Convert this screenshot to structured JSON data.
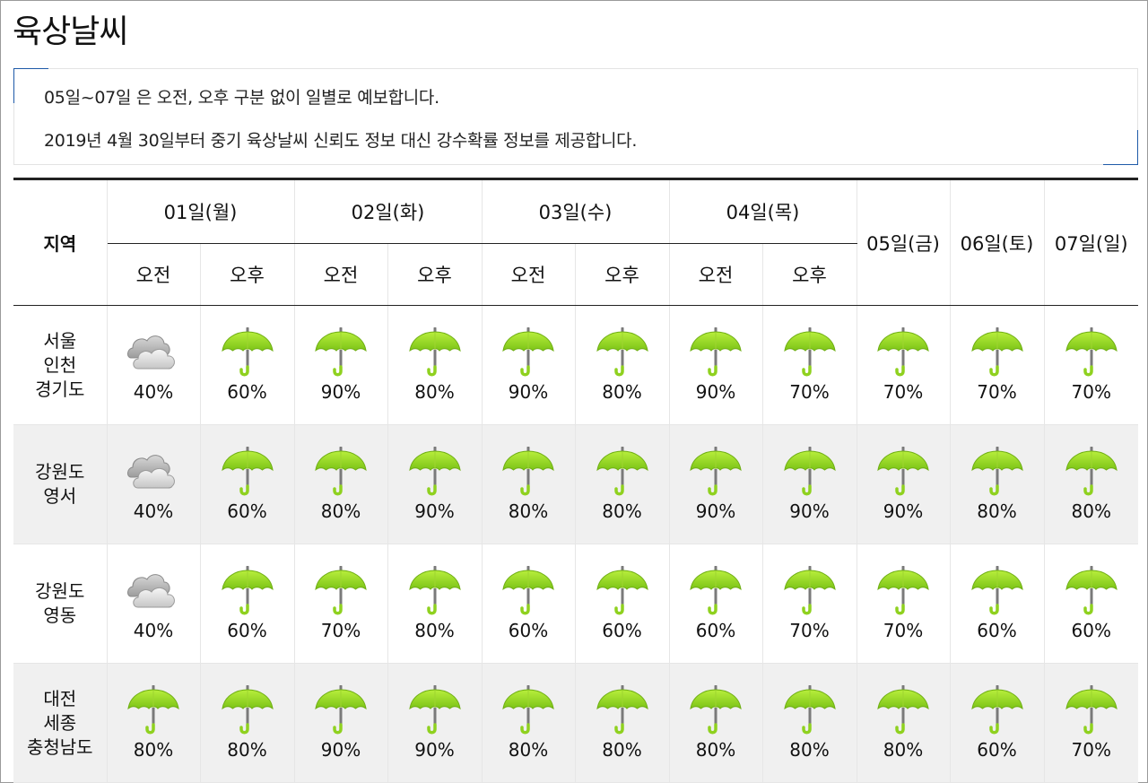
{
  "page": {
    "title": "육상날씨"
  },
  "notice": {
    "line1": "05일~07일 은 오전, 오후 구분 없이 일별로 예보합니다.",
    "line2": "2019년 4월 30일부터 중기 육상날씨 신뢰도 정보 대신 강수확률 정보를 제공합니다."
  },
  "table": {
    "region_header": "지역",
    "days": [
      {
        "label": "01일(월)",
        "split": true
      },
      {
        "label": "02일(화)",
        "split": true
      },
      {
        "label": "03일(수)",
        "split": true
      },
      {
        "label": "04일(목)",
        "split": true
      },
      {
        "label": "05일(금)",
        "split": false
      },
      {
        "label": "06일(토)",
        "split": false
      },
      {
        "label": "07일(일)",
        "split": false
      }
    ],
    "am_label": "오전",
    "pm_label": "오후",
    "rows": [
      {
        "region": [
          "서울",
          "인천",
          "경기도"
        ],
        "cells": [
          {
            "icon": "cloudy-icon",
            "pct": "40%"
          },
          {
            "icon": "umbrella-icon",
            "pct": "60%"
          },
          {
            "icon": "umbrella-icon",
            "pct": "90%"
          },
          {
            "icon": "umbrella-icon",
            "pct": "80%"
          },
          {
            "icon": "umbrella-icon",
            "pct": "90%"
          },
          {
            "icon": "umbrella-icon",
            "pct": "80%"
          },
          {
            "icon": "umbrella-icon",
            "pct": "90%"
          },
          {
            "icon": "umbrella-icon",
            "pct": "70%"
          },
          {
            "icon": "umbrella-icon",
            "pct": "70%"
          },
          {
            "icon": "umbrella-icon",
            "pct": "70%"
          },
          {
            "icon": "umbrella-icon",
            "pct": "70%"
          }
        ]
      },
      {
        "region": [
          "강원도",
          "영서"
        ],
        "cells": [
          {
            "icon": "cloudy-icon",
            "pct": "40%"
          },
          {
            "icon": "umbrella-icon",
            "pct": "60%"
          },
          {
            "icon": "umbrella-icon",
            "pct": "80%"
          },
          {
            "icon": "umbrella-icon",
            "pct": "90%"
          },
          {
            "icon": "umbrella-icon",
            "pct": "80%"
          },
          {
            "icon": "umbrella-icon",
            "pct": "80%"
          },
          {
            "icon": "umbrella-icon",
            "pct": "90%"
          },
          {
            "icon": "umbrella-icon",
            "pct": "90%"
          },
          {
            "icon": "umbrella-icon",
            "pct": "90%"
          },
          {
            "icon": "umbrella-icon",
            "pct": "80%"
          },
          {
            "icon": "umbrella-icon",
            "pct": "80%"
          }
        ]
      },
      {
        "region": [
          "강원도",
          "영동"
        ],
        "cells": [
          {
            "icon": "cloudy-icon",
            "pct": "40%"
          },
          {
            "icon": "umbrella-icon",
            "pct": "60%"
          },
          {
            "icon": "umbrella-icon",
            "pct": "70%"
          },
          {
            "icon": "umbrella-icon",
            "pct": "80%"
          },
          {
            "icon": "umbrella-icon",
            "pct": "60%"
          },
          {
            "icon": "umbrella-icon",
            "pct": "60%"
          },
          {
            "icon": "umbrella-icon",
            "pct": "60%"
          },
          {
            "icon": "umbrella-icon",
            "pct": "70%"
          },
          {
            "icon": "umbrella-icon",
            "pct": "70%"
          },
          {
            "icon": "umbrella-icon",
            "pct": "60%"
          },
          {
            "icon": "umbrella-icon",
            "pct": "60%"
          }
        ]
      },
      {
        "region": [
          "대전",
          "세종",
          "충청남도"
        ],
        "cells": [
          {
            "icon": "umbrella-icon",
            "pct": "80%"
          },
          {
            "icon": "umbrella-icon",
            "pct": "80%"
          },
          {
            "icon": "umbrella-icon",
            "pct": "90%"
          },
          {
            "icon": "umbrella-icon",
            "pct": "90%"
          },
          {
            "icon": "umbrella-icon",
            "pct": "80%"
          },
          {
            "icon": "umbrella-icon",
            "pct": "80%"
          },
          {
            "icon": "umbrella-icon",
            "pct": "80%"
          },
          {
            "icon": "umbrella-icon",
            "pct": "80%"
          },
          {
            "icon": "umbrella-icon",
            "pct": "80%"
          },
          {
            "icon": "umbrella-icon",
            "pct": "60%"
          },
          {
            "icon": "umbrella-icon",
            "pct": "70%"
          }
        ]
      }
    ]
  }
}
